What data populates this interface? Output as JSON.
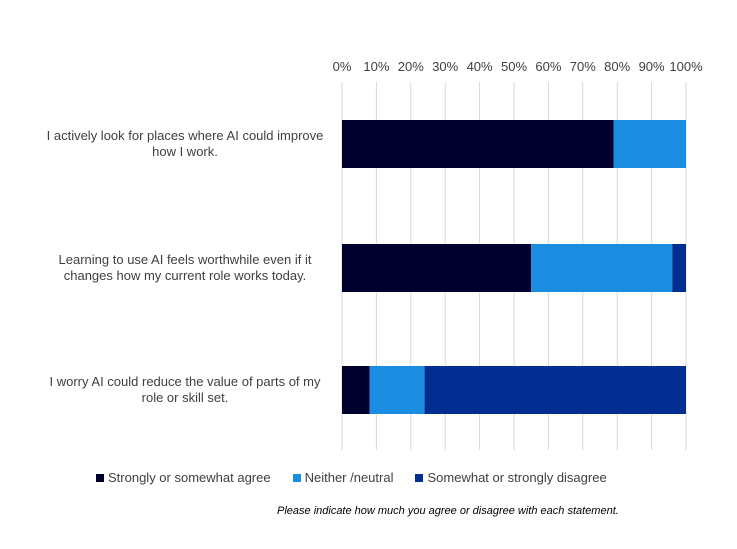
{
  "chart_data": {
    "type": "bar",
    "orientation": "horizontal",
    "stacked": true,
    "percent_stacked": true,
    "categories": [
      [
        "I actively look for places where AI could improve",
        "how I work."
      ],
      [
        "Learning to use AI feels worthwhile even if it",
        "changes how my current role works today."
      ],
      [
        "I worry AI could reduce the value of parts of my",
        "role or skill set."
      ]
    ],
    "series": [
      {
        "name": "Strongly or somewhat agree",
        "color": "#00002e",
        "values": [
          79,
          55,
          8
        ]
      },
      {
        "name": "Neither /neutral",
        "color": "#1b8de0",
        "values": [
          21,
          41,
          16
        ]
      },
      {
        "name": "Somewhat or strongly disagree",
        "color": "#002d8f",
        "values": [
          0,
          4,
          76
        ]
      }
    ],
    "xlim": [
      0,
      100
    ],
    "xticks": [
      "0%",
      "10%",
      "20%",
      "30%",
      "40%",
      "50%",
      "60%",
      "70%",
      "80%",
      "90%",
      "100%"
    ],
    "x_axis_position": "top",
    "grid": true,
    "legend_position": "bottom"
  },
  "caption": "Please indicate how much you agree or disagree with each statement."
}
